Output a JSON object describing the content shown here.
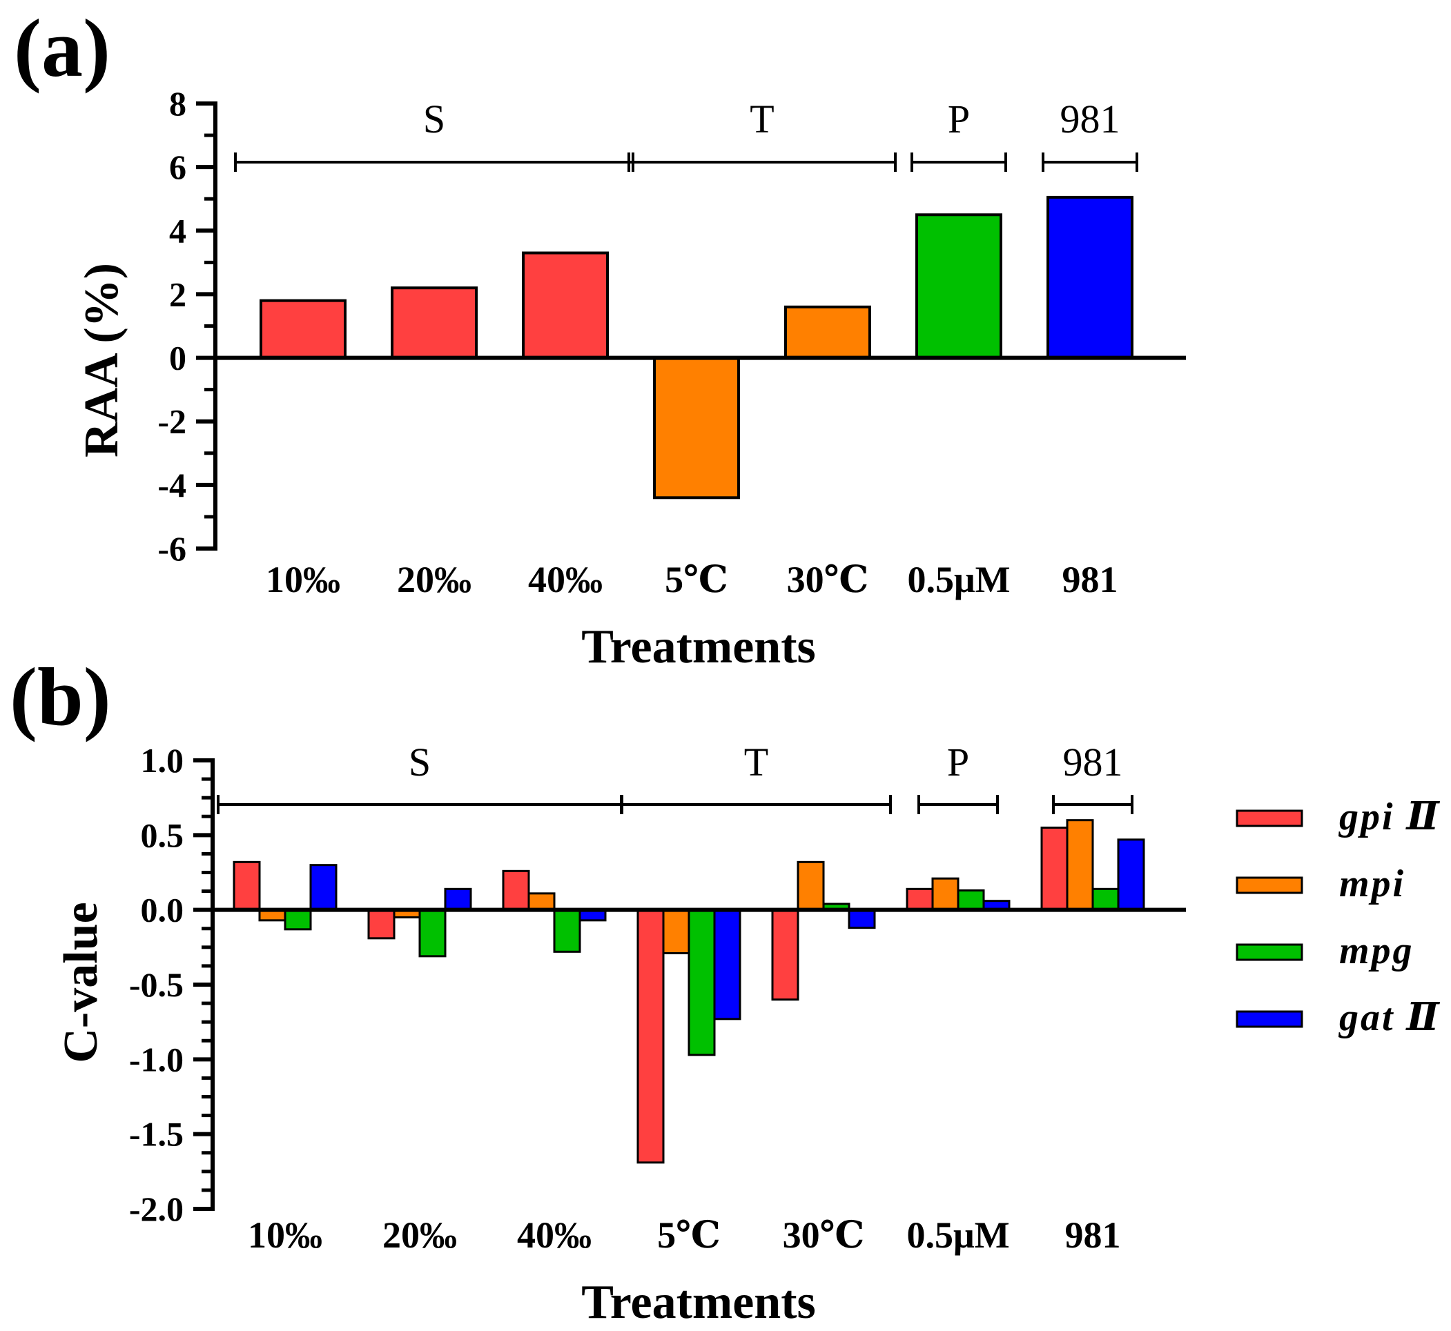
{
  "panels": [
    {
      "label": "(a)",
      "chart_data": {
        "type": "bar",
        "title": "",
        "xlabel": "Treatments",
        "ylabel": "RAA (%)",
        "ylim": [
          -6,
          8
        ],
        "yticks": [
          8,
          6,
          4,
          2,
          0,
          -2,
          -4,
          -6
        ],
        "ytick_labels": [
          "8",
          "6",
          "4",
          "2",
          "0",
          "-2",
          "-4",
          "-6"
        ],
        "categories": [
          "10‰",
          "20‰",
          "40‰",
          "5℃",
          "30℃",
          "0.5μM",
          "981"
        ],
        "values": [
          1.8,
          2.2,
          3.3,
          -4.4,
          1.6,
          4.5,
          5.05
        ],
        "bar_colors": [
          "#ff4040",
          "#ff4040",
          "#ff4040",
          "#ff8000",
          "#ff8000",
          "#00c000",
          "#0000ff"
        ],
        "groups": [
          {
            "label": "S",
            "from": 0,
            "to": 2
          },
          {
            "label": "T",
            "from": 3,
            "to": 4
          },
          {
            "label": "P",
            "from": 5,
            "to": 5
          },
          {
            "label": "981",
            "from": 6,
            "to": 6
          }
        ]
      }
    },
    {
      "label": "(b)",
      "chart_data": {
        "type": "bar",
        "title": "",
        "xlabel": "Treatments",
        "ylabel": "C-value",
        "ylim": [
          -2.0,
          1.0
        ],
        "yticks": [
          1.0,
          0.5,
          0.0,
          -0.5,
          -1.0,
          -1.5,
          -2.0
        ],
        "ytick_labels": [
          "1.0",
          "0.5",
          "0.0",
          "-0.5",
          "-1.0",
          "-1.5",
          "-2.0"
        ],
        "categories": [
          "10‰",
          "20‰",
          "40‰",
          "5℃",
          "30℃",
          "0.5μM",
          "981"
        ],
        "series": [
          {
            "name": "gpi Ⅱ",
            "color": "#ff4040",
            "values": [
              0.32,
              -0.19,
              0.26,
              -1.69,
              -0.6,
              0.14,
              0.55
            ]
          },
          {
            "name": "mpi",
            "color": "#ff8000",
            "values": [
              -0.07,
              -0.05,
              0.11,
              -0.29,
              0.32,
              0.21,
              0.6
            ]
          },
          {
            "name": "mpg",
            "color": "#00c000",
            "values": [
              -0.13,
              -0.31,
              -0.28,
              -0.97,
              0.04,
              0.13,
              0.14
            ]
          },
          {
            "name": "gat Ⅱ",
            "color": "#0000ff",
            "values": [
              0.3,
              0.14,
              -0.07,
              -0.73,
              -0.12,
              0.06,
              0.47
            ]
          }
        ],
        "groups": [
          {
            "label": "S",
            "from": 0,
            "to": 2
          },
          {
            "label": "T",
            "from": 3,
            "to": 4
          },
          {
            "label": "P",
            "from": 5,
            "to": 5
          },
          {
            "label": "981",
            "from": 6,
            "to": 6
          }
        ],
        "legend_position": "right"
      }
    }
  ]
}
